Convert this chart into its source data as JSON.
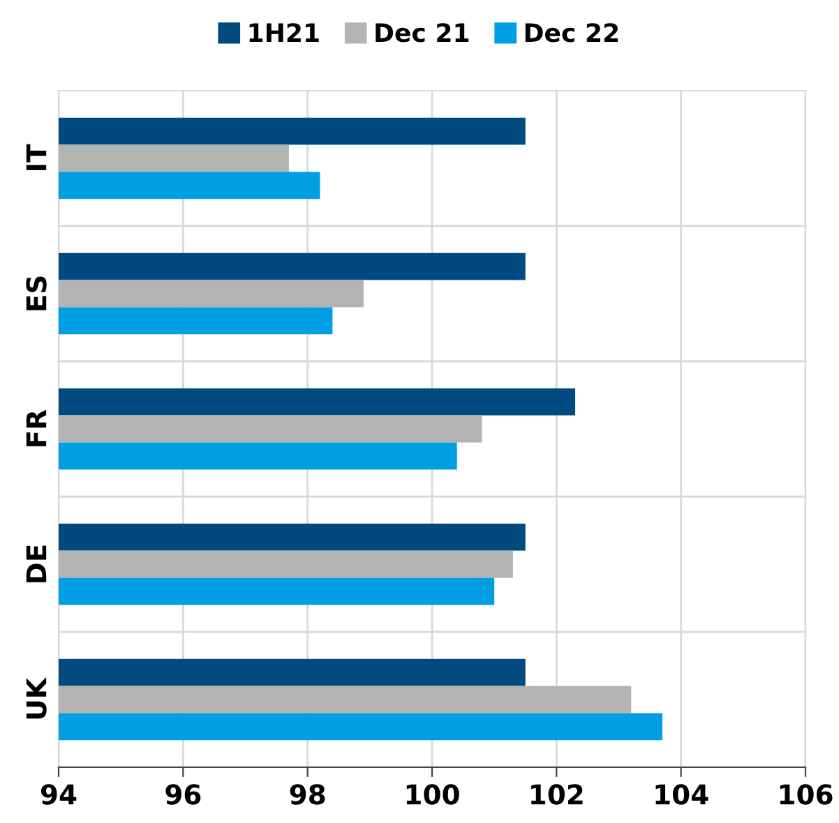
{
  "chart_data": {
    "type": "bar",
    "orientation": "horizontal",
    "categories": [
      "IT",
      "ES",
      "FR",
      "DE",
      "UK"
    ],
    "series": [
      {
        "name": "1H21",
        "color": "#004a80",
        "values": [
          101.5,
          101.5,
          102.3,
          101.5,
          101.5
        ]
      },
      {
        "name": "Dec 21",
        "color": "#b3b3b3",
        "values": [
          97.7,
          98.9,
          100.8,
          101.3,
          103.2
        ]
      },
      {
        "name": "Dec 22",
        "color": "#009fe3",
        "values": [
          98.2,
          98.4,
          100.4,
          101.0,
          103.7
        ]
      }
    ],
    "xlim": [
      94,
      106
    ],
    "xticks": [
      94,
      96,
      98,
      100,
      102,
      104,
      106
    ],
    "grid": true,
    "legend": "top"
  }
}
